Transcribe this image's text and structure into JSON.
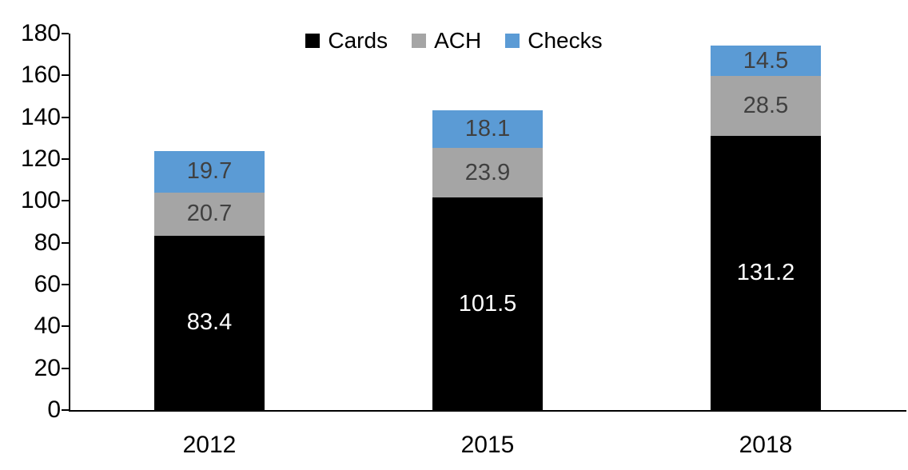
{
  "chart_data": {
    "type": "bar",
    "stacked": true,
    "title": "",
    "xlabel": "",
    "ylabel": "",
    "categories": [
      "2012",
      "2015",
      "2018"
    ],
    "series": [
      {
        "name": "Cards",
        "color": "#000000",
        "label_color": "#ffffff",
        "values": [
          83.4,
          101.5,
          131.2
        ]
      },
      {
        "name": "ACH",
        "color": "#A5A5A5",
        "label_color": "#404040",
        "values": [
          20.7,
          23.9,
          28.5
        ]
      },
      {
        "name": "Checks",
        "color": "#5B9BD5",
        "label_color": "#404040",
        "values": [
          19.7,
          18.1,
          14.5
        ]
      }
    ],
    "totals": [
      123.8,
      143.5,
      174.2
    ],
    "ylim": [
      0,
      180
    ],
    "ytick_step": 20,
    "ytick_labels": [
      "0",
      "20",
      "40",
      "60",
      "80",
      "100",
      "120",
      "140",
      "160",
      "180"
    ],
    "grid": false,
    "value_labels": true,
    "legend_position": "top-center",
    "axis_color": "#000000",
    "background": "#ffffff"
  }
}
